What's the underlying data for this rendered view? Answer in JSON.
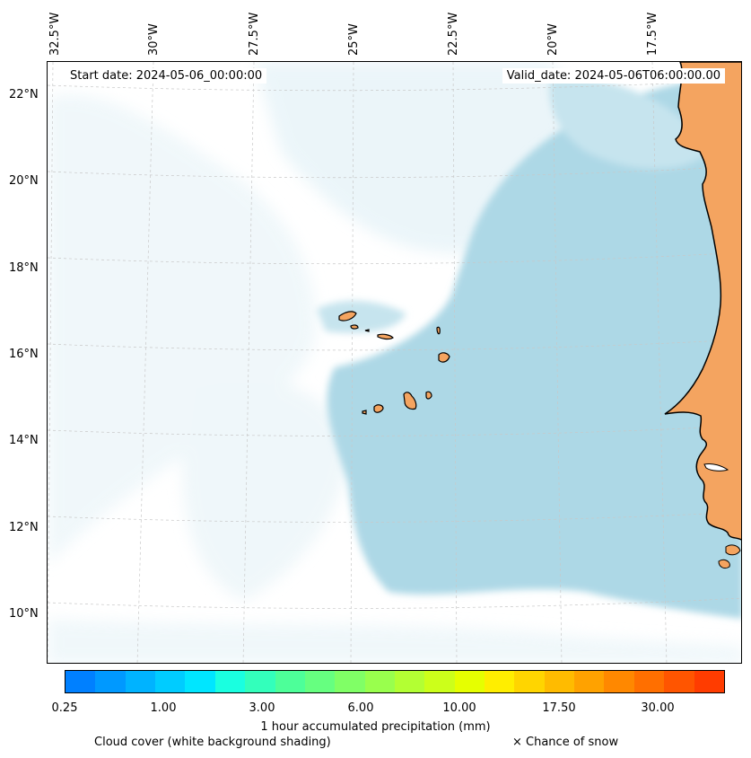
{
  "map": {
    "start_date": "Start date: 2024-05-06_00:00:00",
    "valid_date": "Valid_date: 2024-05-06T06:00:00.00",
    "lon_labels": [
      "32.5°W",
      "30°W",
      "27.5°W",
      "25°W",
      "22.5°W",
      "20°W",
      "17.5°W"
    ],
    "lat_labels": [
      "22°N",
      "20°N",
      "18°N",
      "16°N",
      "14°N",
      "12°N",
      "10°N"
    ],
    "land_color": "#f4a460",
    "ocean_cloud_color": "#add8e6"
  },
  "colorbar": {
    "label": "1 hour accumulated precipitation (mm)",
    "ticks": [
      "0.25",
      "1.00",
      "3.00",
      "6.00",
      "10.00",
      "17.50",
      "30.00"
    ],
    "colors": [
      "#0080ff",
      "#0099ff",
      "#00b3ff",
      "#00ccff",
      "#00e6ff",
      "#1affe0",
      "#33ffbb",
      "#4dff99",
      "#66ff80",
      "#80ff66",
      "#99ff4d",
      "#b3ff33",
      "#ccff1a",
      "#e6ff00",
      "#ffee00",
      "#ffd500",
      "#ffbb00",
      "#ffa200",
      "#ff8800",
      "#ff6f00",
      "#ff5500",
      "#ff3c00"
    ]
  },
  "legend": {
    "cloud": "Cloud cover (white background shading)",
    "snow": "× Chance of snow"
  }
}
